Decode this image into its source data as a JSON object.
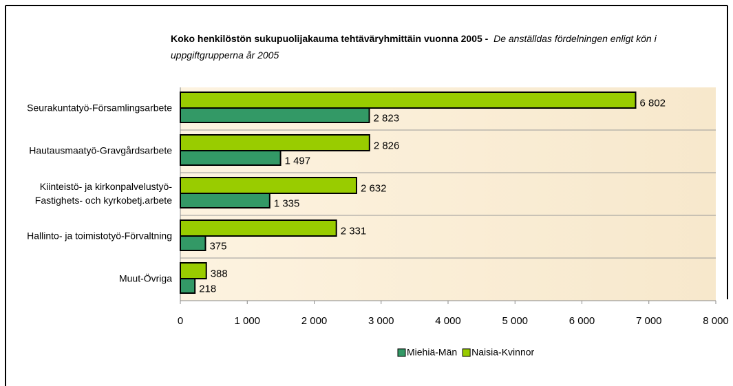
{
  "chart_data": {
    "type": "bar",
    "orientation": "horizontal",
    "title": "Koko henkilöstön sukupuolijakauma tehtäväryhmittäin vuonna 2005 -",
    "subtitle": "De anställdas fördelningen enligt kön i uppgiftgrupperna år 2005",
    "categories": [
      "Seurakuntatyö-Församlingsarbete",
      "Hautausmaatyö-Gravgårdsarbete",
      "Kiinteistö- ja kirkonpalvelustyö-\nFastighets- och kyrkobetj.arbete",
      "Hallinto- ja toimistotyö-Förvaltning",
      "Muut-Övriga"
    ],
    "series": [
      {
        "name": "Miehiä-Män",
        "color": "#339966",
        "values": [
          2823,
          1497,
          1335,
          375,
          218
        ],
        "value_labels": [
          "2 823",
          "1 497",
          "1 335",
          "375",
          "218"
        ]
      },
      {
        "name": "Naisia-Kvinnor",
        "color": "#99cc00",
        "values": [
          6802,
          2826,
          2632,
          2331,
          388
        ],
        "value_labels": [
          "6 802",
          "2 826",
          "2 632",
          "2 331",
          "388"
        ]
      }
    ],
    "xlim": [
      0,
      8000
    ],
    "xticks": [
      0,
      {
        "value": 1000,
        "label": "1 000"
      },
      {
        "value": 2000,
        "label": "2 000"
      },
      {
        "value": 3000,
        "label": "3 000"
      },
      {
        "value": 4000,
        "label": "4 000"
      },
      {
        "value": 5000,
        "label": "5 000"
      },
      {
        "value": 6000,
        "label": "6 000"
      },
      {
        "value": 7000,
        "label": "7 000"
      },
      {
        "value": 8000,
        "label": "8 000"
      }
    ],
    "legend": "bottom"
  }
}
